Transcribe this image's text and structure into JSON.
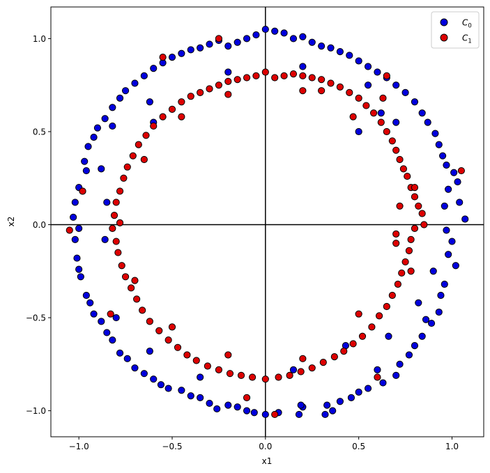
{
  "chart_data": {
    "type": "scatter",
    "title": "",
    "xlabel": "x1",
    "ylabel": "x2",
    "xlim": [
      -1.15,
      1.17
    ],
    "ylim": [
      -1.14,
      1.17
    ],
    "xticks": [
      -1.0,
      -0.5,
      0.0,
      0.5,
      1.0
    ],
    "xtick_labels": [
      "−1.0",
      "−0.5",
      "0.0",
      "0.5",
      "1.0"
    ],
    "yticks": [
      -1.0,
      -0.5,
      0.0,
      0.5,
      1.0
    ],
    "ytick_labels": [
      "−1.0",
      "−0.5",
      "0.0",
      "0.5",
      "1.0"
    ],
    "reference_lines": {
      "x": 0,
      "y": 0
    },
    "legend_position": "top-right",
    "series": [
      {
        "name": "C0",
        "label_base": "C",
        "label_sub": "0",
        "color": "#0000dd",
        "ring": "outer",
        "points": [
          [
            1.07,
            0.03
          ],
          [
            1.04,
            0.12
          ],
          [
            1.03,
            0.23
          ],
          [
            1.01,
            0.28
          ],
          [
            0.98,
            0.19
          ],
          [
            0.96,
            0.1
          ],
          [
            0.97,
            -0.03
          ],
          [
            1.0,
            -0.09
          ],
          [
            0.98,
            -0.16
          ],
          [
            1.02,
            -0.22
          ],
          [
            0.96,
            -0.32
          ],
          [
            0.94,
            -0.38
          ],
          [
            0.93,
            -0.47
          ],
          [
            0.89,
            -0.53
          ],
          [
            0.86,
            -0.51
          ],
          [
            0.84,
            -0.6
          ],
          [
            0.8,
            -0.65
          ],
          [
            0.77,
            -0.7
          ],
          [
            0.72,
            -0.75
          ],
          [
            0.7,
            -0.81
          ],
          [
            0.63,
            -0.85
          ],
          [
            0.6,
            -0.78
          ],
          [
            0.55,
            -0.88
          ],
          [
            0.5,
            -0.9
          ],
          [
            0.46,
            -0.93
          ],
          [
            0.4,
            -0.95
          ],
          [
            0.33,
            -0.97
          ],
          [
            0.36,
            -1.0
          ],
          [
            0.32,
            -1.02
          ],
          [
            0.2,
            -0.98
          ],
          [
            0.19,
            -0.97
          ],
          [
            0.18,
            -1.02
          ],
          [
            0.07,
            -1.01
          ],
          [
            0.0,
            -1.02
          ],
          [
            -0.06,
            -1.01
          ],
          [
            -0.1,
            -1.0
          ],
          [
            -0.15,
            -0.98
          ],
          [
            -0.2,
            -0.97
          ],
          [
            -0.26,
            -0.99
          ],
          [
            -0.3,
            -0.96
          ],
          [
            -0.35,
            -0.93
          ],
          [
            -0.4,
            -0.92
          ],
          [
            -0.45,
            -0.89
          ],
          [
            -0.52,
            -0.88
          ],
          [
            -0.56,
            -0.86
          ],
          [
            -0.6,
            -0.83
          ],
          [
            -0.65,
            -0.8
          ],
          [
            -0.7,
            -0.77
          ],
          [
            -0.74,
            -0.72
          ],
          [
            -0.78,
            -0.69
          ],
          [
            -0.82,
            -0.62
          ],
          [
            -0.85,
            -0.58
          ],
          [
            -0.88,
            -0.52
          ],
          [
            -0.92,
            -0.48
          ],
          [
            -0.94,
            -0.42
          ],
          [
            -0.96,
            -0.38
          ],
          [
            -0.99,
            -0.28
          ],
          [
            -1.0,
            -0.24
          ],
          [
            -1.01,
            -0.18
          ],
          [
            -1.02,
            -0.08
          ],
          [
            -1.0,
            -0.02
          ],
          [
            -1.03,
            0.04
          ],
          [
            -1.02,
            0.12
          ],
          [
            -0.98,
            0.18
          ],
          [
            -1.0,
            0.2
          ],
          [
            -0.96,
            0.29
          ],
          [
            -0.97,
            0.34
          ],
          [
            -0.95,
            0.42
          ],
          [
            -0.92,
            0.47
          ],
          [
            -0.9,
            0.52
          ],
          [
            -0.86,
            0.57
          ],
          [
            -0.82,
            0.63
          ],
          [
            -0.78,
            0.68
          ],
          [
            -0.75,
            0.72
          ],
          [
            -0.7,
            0.76
          ],
          [
            -0.65,
            0.8
          ],
          [
            -0.6,
            0.84
          ],
          [
            -0.55,
            0.87
          ],
          [
            -0.5,
            0.9
          ],
          [
            -0.45,
            0.92
          ],
          [
            -0.4,
            0.94
          ],
          [
            -0.35,
            0.95
          ],
          [
            -0.3,
            0.97
          ],
          [
            -0.25,
            0.99
          ],
          [
            -0.2,
            0.96
          ],
          [
            -0.15,
            0.98
          ],
          [
            -0.1,
            1.0
          ],
          [
            -0.05,
            1.02
          ],
          [
            0.0,
            1.05
          ],
          [
            0.05,
            1.04
          ],
          [
            0.1,
            1.03
          ],
          [
            0.15,
            1.0
          ],
          [
            0.2,
            1.01
          ],
          [
            0.25,
            0.98
          ],
          [
            0.3,
            0.96
          ],
          [
            0.35,
            0.95
          ],
          [
            0.4,
            0.93
          ],
          [
            0.45,
            0.91
          ],
          [
            0.5,
            0.88
          ],
          [
            0.55,
            0.85
          ],
          [
            0.6,
            0.82
          ],
          [
            0.65,
            0.79
          ],
          [
            0.7,
            0.75
          ],
          [
            0.75,
            0.71
          ],
          [
            0.8,
            0.66
          ],
          [
            0.84,
            0.6
          ],
          [
            0.87,
            0.55
          ],
          [
            0.91,
            0.49
          ],
          [
            0.93,
            0.43
          ],
          [
            0.95,
            0.37
          ],
          [
            0.97,
            0.32
          ],
          [
            -0.86,
            -0.08
          ],
          [
            -0.85,
            0.12
          ],
          [
            -0.88,
            0.3
          ],
          [
            -0.82,
            0.53
          ],
          [
            -0.62,
            0.66
          ],
          [
            -0.6,
            0.55
          ],
          [
            0.55,
            0.75
          ],
          [
            0.62,
            0.6
          ],
          [
            0.7,
            0.55
          ],
          [
            0.66,
            -0.6
          ],
          [
            0.82,
            -0.42
          ],
          [
            0.9,
            -0.25
          ],
          [
            -0.8,
            -0.5
          ],
          [
            -0.62,
            -0.68
          ],
          [
            -0.35,
            -0.82
          ],
          [
            0.15,
            -0.78
          ],
          [
            0.43,
            -0.65
          ],
          [
            0.5,
            0.5
          ],
          [
            0.2,
            0.85
          ],
          [
            -0.2,
            0.82
          ]
        ]
      },
      {
        "name": "C1",
        "label_base": "C",
        "label_sub": "1",
        "color": "#dd0000",
        "ring": "inner",
        "points": [
          [
            1.05,
            0.29
          ],
          [
            -1.05,
            -0.03
          ],
          [
            0.85,
            0.0
          ],
          [
            0.84,
            0.06
          ],
          [
            0.82,
            0.1
          ],
          [
            0.8,
            0.15
          ],
          [
            0.78,
            0.2
          ],
          [
            0.76,
            0.26
          ],
          [
            0.74,
            0.3
          ],
          [
            0.72,
            0.35
          ],
          [
            0.7,
            0.4
          ],
          [
            0.68,
            0.45
          ],
          [
            0.65,
            0.5
          ],
          [
            0.62,
            0.55
          ],
          [
            0.58,
            0.6
          ],
          [
            0.54,
            0.64
          ],
          [
            0.5,
            0.68
          ],
          [
            0.45,
            0.71
          ],
          [
            0.4,
            0.74
          ],
          [
            0.35,
            0.76
          ],
          [
            0.3,
            0.78
          ],
          [
            0.25,
            0.79
          ],
          [
            0.2,
            0.8
          ],
          [
            0.15,
            0.81
          ],
          [
            0.1,
            0.8
          ],
          [
            0.05,
            0.79
          ],
          [
            0.0,
            0.82
          ],
          [
            -0.05,
            0.8
          ],
          [
            -0.1,
            0.79
          ],
          [
            -0.15,
            0.78
          ],
          [
            -0.2,
            0.77
          ],
          [
            -0.25,
            0.75
          ],
          [
            -0.3,
            0.73
          ],
          [
            -0.35,
            0.71
          ],
          [
            -0.4,
            0.69
          ],
          [
            -0.45,
            0.66
          ],
          [
            -0.5,
            0.62
          ],
          [
            -0.55,
            0.58
          ],
          [
            -0.6,
            0.53
          ],
          [
            -0.64,
            0.48
          ],
          [
            -0.68,
            0.43
          ],
          [
            -0.71,
            0.37
          ],
          [
            -0.74,
            0.31
          ],
          [
            -0.76,
            0.25
          ],
          [
            -0.78,
            0.18
          ],
          [
            -0.8,
            0.12
          ],
          [
            -0.81,
            0.05
          ],
          [
            -0.82,
            -0.02
          ],
          [
            -0.8,
            -0.09
          ],
          [
            -0.79,
            -0.15
          ],
          [
            -0.77,
            -0.22
          ],
          [
            -0.75,
            -0.28
          ],
          [
            -0.72,
            -0.34
          ],
          [
            -0.69,
            -0.4
          ],
          [
            -0.66,
            -0.46
          ],
          [
            -0.62,
            -0.52
          ],
          [
            -0.57,
            -0.57
          ],
          [
            -0.52,
            -0.62
          ],
          [
            -0.47,
            -0.66
          ],
          [
            -0.42,
            -0.7
          ],
          [
            -0.37,
            -0.73
          ],
          [
            -0.31,
            -0.76
          ],
          [
            -0.25,
            -0.78
          ],
          [
            -0.19,
            -0.8
          ],
          [
            -0.13,
            -0.81
          ],
          [
            -0.07,
            -0.82
          ],
          [
            0.0,
            -0.83
          ],
          [
            0.07,
            -0.82
          ],
          [
            0.13,
            -0.81
          ],
          [
            0.19,
            -0.79
          ],
          [
            0.25,
            -0.77
          ],
          [
            0.31,
            -0.74
          ],
          [
            0.37,
            -0.71
          ],
          [
            0.42,
            -0.68
          ],
          [
            0.47,
            -0.64
          ],
          [
            0.52,
            -0.6
          ],
          [
            0.57,
            -0.55
          ],
          [
            0.61,
            -0.49
          ],
          [
            0.65,
            -0.44
          ],
          [
            0.68,
            -0.38
          ],
          [
            0.71,
            -0.32
          ],
          [
            0.73,
            -0.26
          ],
          [
            0.75,
            -0.2
          ],
          [
            0.77,
            -0.14
          ],
          [
            0.78,
            -0.08
          ],
          [
            0.8,
            -0.02
          ],
          [
            0.8,
            0.2
          ],
          [
            0.78,
            -0.25
          ],
          [
            0.7,
            -0.1
          ],
          [
            0.72,
            0.1
          ],
          [
            0.63,
            0.68
          ],
          [
            0.47,
            0.58
          ],
          [
            0.2,
            0.72
          ],
          [
            -0.2,
            0.7
          ],
          [
            -0.45,
            0.58
          ],
          [
            -0.65,
            0.35
          ],
          [
            -0.78,
            0.01
          ],
          [
            -0.7,
            -0.3
          ],
          [
            -0.5,
            -0.55
          ],
          [
            -0.2,
            -0.7
          ],
          [
            0.2,
            -0.72
          ],
          [
            0.5,
            -0.48
          ],
          [
            0.7,
            -0.05
          ],
          [
            -0.98,
            0.18
          ],
          [
            -0.83,
            -0.48
          ],
          [
            0.05,
            -1.02
          ],
          [
            -0.25,
            1.0
          ],
          [
            0.6,
            -0.82
          ],
          [
            0.3,
            0.72
          ],
          [
            -0.1,
            -0.93
          ],
          [
            0.65,
            0.8
          ],
          [
            -0.55,
            0.9
          ]
        ]
      }
    ]
  }
}
